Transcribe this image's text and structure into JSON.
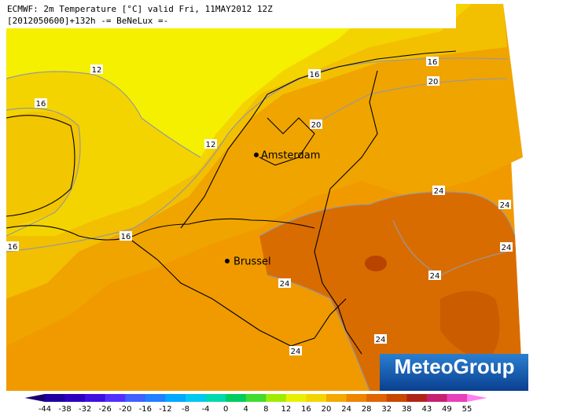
{
  "header": {
    "title": "ECMWF: 2m Temperature [°C] valid Fri, 11MAY2012 12Z",
    "subtitle": "[2012050600]+132h -= BeNeLux =-"
  },
  "cities": [
    "Amsterdam",
    "Brussel"
  ],
  "contour_labels": [
    "12",
    "12",
    "16",
    "16",
    "16",
    "16",
    "16",
    "20",
    "20",
    "24",
    "24",
    "24",
    "24",
    "24",
    "24",
    "24"
  ],
  "logo": "MeteoGroup",
  "scale": {
    "ticks": [
      -44,
      -38,
      -32,
      -26,
      -20,
      -16,
      -12,
      -8,
      -4,
      0,
      4,
      8,
      12,
      16,
      20,
      24,
      28,
      32,
      38,
      43,
      49,
      55
    ],
    "colors": [
      "#1a0070",
      "#2000a0",
      "#3000c0",
      "#4010e0",
      "#5030ff",
      "#4060ff",
      "#2080ff",
      "#00a8ff",
      "#00c8f0",
      "#00d8b0",
      "#00cc60",
      "#40dc30",
      "#a0ec00",
      "#e8f000",
      "#f4d400",
      "#f4a800",
      "#ee8400",
      "#e06400",
      "#c84800",
      "#b02418",
      "#c82070",
      "#e840b8",
      "#ff80f0"
    ]
  }
}
